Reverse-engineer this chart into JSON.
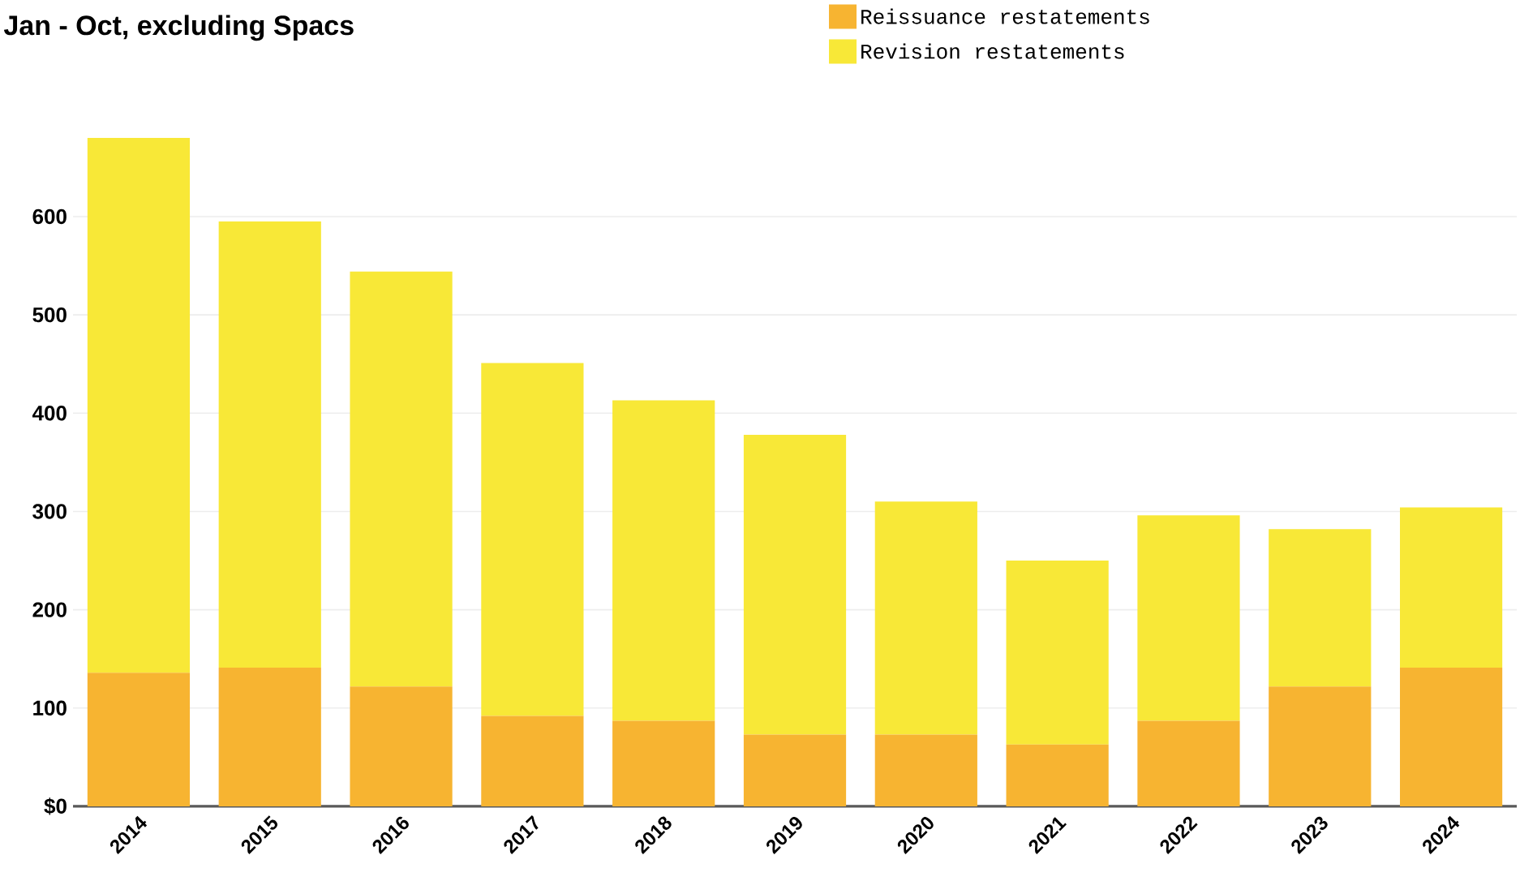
{
  "chart_data": {
    "type": "bar",
    "title": "Jan - Oct, excluding Spacs",
    "stacked": true,
    "categories": [
      "2014",
      "2015",
      "2016",
      "2017",
      "2018",
      "2019",
      "2020",
      "2021",
      "2022",
      "2023",
      "2024"
    ],
    "series": [
      {
        "name": "Reissuance restatements",
        "color": "#f7b431",
        "values": [
          136,
          141,
          122,
          92,
          87,
          73,
          73,
          63,
          87,
          122,
          141
        ]
      },
      {
        "name": "Revision restatements",
        "color": "#f8e837",
        "values": [
          544,
          454,
          422,
          359,
          326,
          305,
          237,
          187,
          209,
          160,
          163
        ]
      }
    ],
    "ylim": [
      0,
      680
    ],
    "yticks": [
      {
        "value": 0,
        "label": "$0"
      },
      100,
      200,
      300,
      400,
      500,
      600
    ],
    "grid": "y",
    "legend": "top right"
  }
}
